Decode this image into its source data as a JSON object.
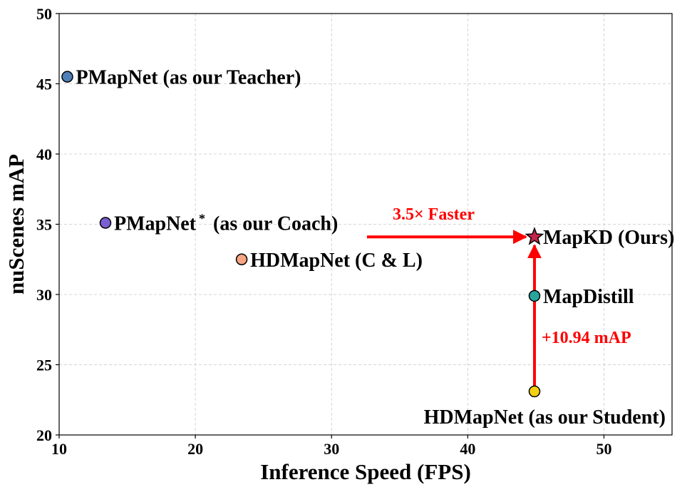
{
  "chart_data": {
    "type": "scatter",
    "xlabel": "Inference Speed (FPS)",
    "ylabel": "nuScenes mAP",
    "xlim": [
      10,
      55
    ],
    "ylim": [
      20,
      50
    ],
    "xticks": [
      10,
      20,
      30,
      40,
      50
    ],
    "yticks": [
      20,
      25,
      30,
      35,
      40,
      45,
      50
    ],
    "grid": true,
    "points": [
      {
        "label": "PMapNet (as our Teacher)",
        "x": 10.6,
        "y": 45.5,
        "marker": "circle",
        "color": "#4f7fb8"
      },
      {
        "label": "PMapNet",
        "label_sup": "*",
        "label_suffix": " (as our Coach)",
        "x": 13.4,
        "y": 35.1,
        "marker": "circle",
        "color": "#7b5fd0"
      },
      {
        "label": "HDMapNet (C & L)",
        "x": 23.4,
        "y": 32.5,
        "marker": "circle",
        "color": "#f7a582"
      },
      {
        "label": "MapKD (Ours)",
        "x": 44.9,
        "y": 34.1,
        "marker": "star",
        "color": "#c4254c"
      },
      {
        "label": "MapDistill",
        "x": 44.9,
        "y": 29.9,
        "marker": "circle",
        "color": "#27a59d"
      },
      {
        "label": "HDMapNet (as our Student)",
        "x": 44.9,
        "y": 23.1,
        "marker": "circle",
        "color": "#f5d211"
      }
    ],
    "annotations": [
      {
        "text": "3.5× Faster",
        "color": "#ff0000"
      },
      {
        "text": "+10.94 mAP",
        "color": "#ff0000"
      }
    ]
  }
}
